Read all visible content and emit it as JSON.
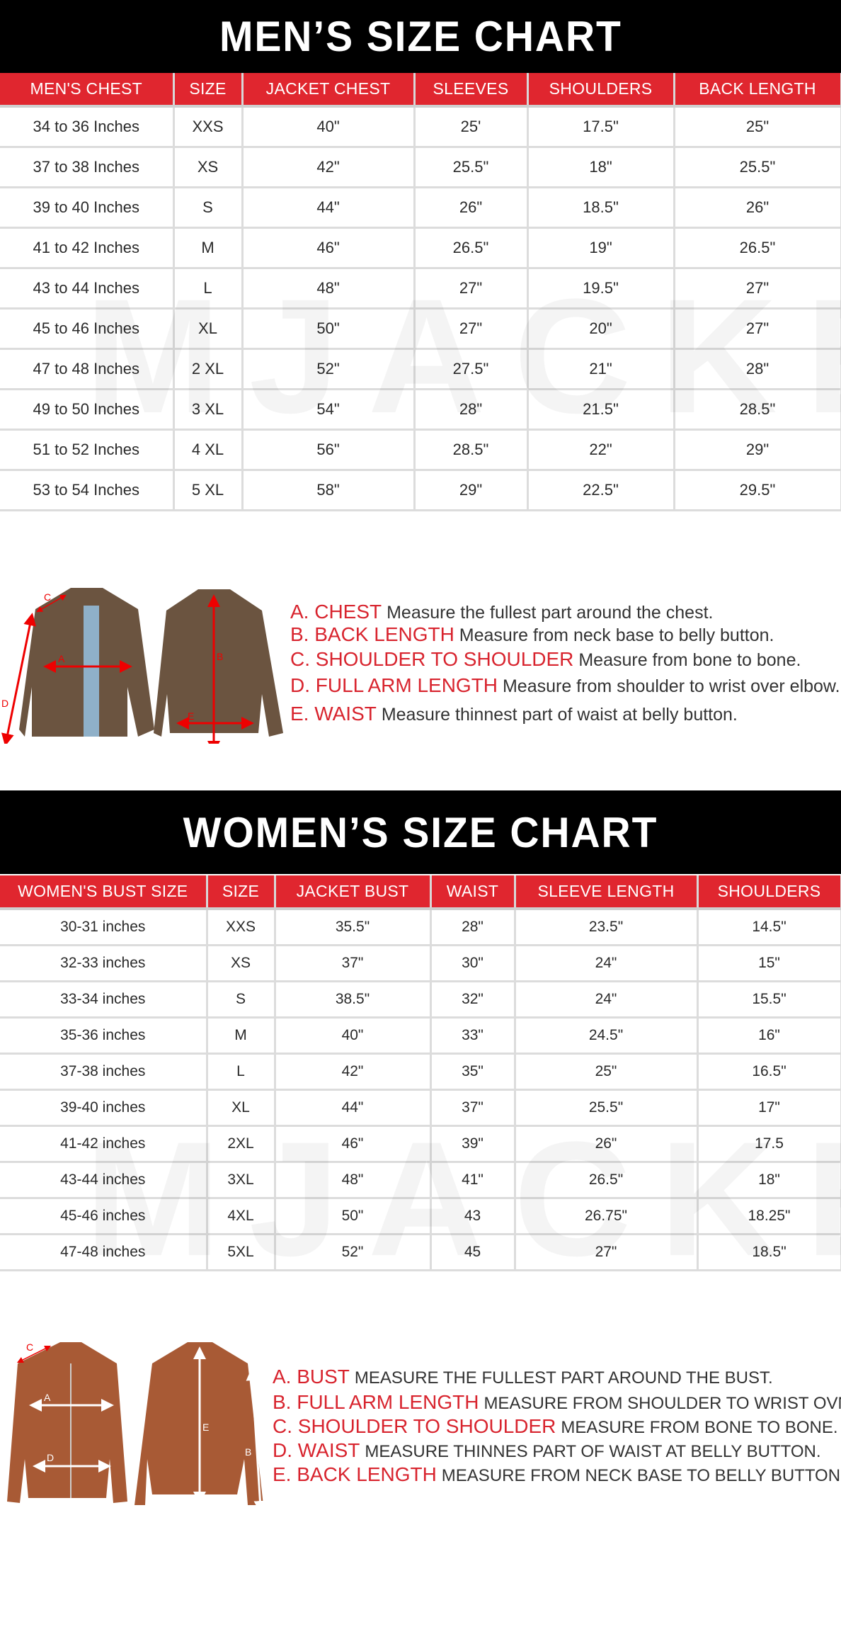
{
  "watermark": "MJACKET",
  "men": {
    "title": "MEN’S SIZE CHART",
    "headers": [
      "MEN'S CHEST",
      "SIZE",
      "JACKET CHEST",
      "SLEEVES",
      "SHOULDERS",
      "BACK LENGTH"
    ],
    "rows": [
      [
        "34 to 36 Inches",
        "XXS",
        "40\"",
        "25'",
        "17.5\"",
        "25\""
      ],
      [
        "37 to 38 Inches",
        "XS",
        "42\"",
        "25.5\"",
        "18\"",
        "25.5\""
      ],
      [
        "39 to 40 Inches",
        "S",
        "44\"",
        "26\"",
        "18.5\"",
        "26\""
      ],
      [
        "41 to 42 Inches",
        "M",
        "46\"",
        "26.5\"",
        "19\"",
        "26.5\""
      ],
      [
        "43 to 44 Inches",
        "L",
        "48\"",
        "27\"",
        "19.5\"",
        "27\""
      ],
      [
        "45 to 46 Inches",
        "XL",
        "50\"",
        "27\"",
        "20\"",
        "27\""
      ],
      [
        "47 to 48 Inches",
        "2 XL",
        "52\"",
        "27.5\"",
        "21\"",
        "28\""
      ],
      [
        "49 to 50 Inches",
        "3 XL",
        "54\"",
        "28\"",
        "21.5\"",
        "28.5\""
      ],
      [
        "51 to 52 Inches",
        "4 XL",
        "56\"",
        "28.5\"",
        "22\"",
        "29\""
      ],
      [
        "53 to 54 Inches",
        "5 XL",
        "58\"",
        "29\"",
        "22.5\"",
        "29.5\""
      ]
    ],
    "diagram_labels": {
      "a": "A",
      "b": "B",
      "c": "C",
      "d": "D",
      "e": "E"
    },
    "legend": [
      {
        "key": "A. CHEST",
        "desc": "Measure the fullest part around the chest."
      },
      {
        "key": "B. BACK LENGTH",
        "desc": "Measure from neck base to belly button."
      },
      {
        "key": "C. SHOULDER TO SHOULDER",
        "desc": "Measure from bone to bone."
      },
      {
        "key": "D. FULL ARM LENGTH",
        "desc": "Measure from shoulder to wrist over elbow."
      },
      {
        "key": "E. WAIST",
        "desc": "Measure thinnest part of waist at belly button."
      }
    ]
  },
  "women": {
    "title": "WOMEN’S SIZE CHART",
    "headers": [
      "WOMEN'S BUST SIZE",
      "SIZE",
      "JACKET BUST",
      "WAIST",
      "SLEEVE LENGTH",
      "SHOULDERS"
    ],
    "rows": [
      [
        "30-31 inches",
        "XXS",
        "35.5\"",
        "28\"",
        "23.5\"",
        "14.5\""
      ],
      [
        "32-33 inches",
        "XS",
        "37\"",
        "30\"",
        "24\"",
        "15\""
      ],
      [
        "33-34 inches",
        "S",
        "38.5\"",
        "32\"",
        "24\"",
        "15.5\""
      ],
      [
        "35-36 inches",
        "M",
        "40\"",
        "33\"",
        "24.5\"",
        "16\""
      ],
      [
        "37-38 inches",
        "L",
        "42\"",
        "35\"",
        "25\"",
        "16.5\""
      ],
      [
        "39-40 inches",
        "XL",
        "44\"",
        "37\"",
        "25.5\"",
        "17\""
      ],
      [
        "41-42 inches",
        "2XL",
        "46\"",
        "39\"",
        "26\"",
        "17.5"
      ],
      [
        "43-44 inches",
        "3XL",
        "48\"",
        "41\"",
        "26.5\"",
        "18\""
      ],
      [
        "45-46 inches",
        "4XL",
        "50\"",
        "43",
        "26.75\"",
        "18.25\""
      ],
      [
        "47-48 inches",
        "5XL",
        "52\"",
        "45",
        "27\"",
        "18.5\""
      ]
    ],
    "diagram_labels": {
      "a": "A",
      "b": "B",
      "c": "C",
      "d": "D",
      "e": "E"
    },
    "legend": [
      {
        "key": "A. BUST",
        "desc": "MEASURE THE FULLEST PART AROUND THE BUST."
      },
      {
        "key": "B. FULL ARM LENGTH",
        "desc": "MEASURE FROM SHOULDER TO WRIST OVN."
      },
      {
        "key": "C. SHOULDER TO SHOULDER",
        "desc": "MEASURE FROM BONE TO BONE."
      },
      {
        "key": "D. WAIST",
        "desc": "MEASURE THINNES PART OF WAIST AT BELLY BUTTON."
      },
      {
        "key": "E. BACK LENGTH",
        "desc": "MEASURE FROM NECK BASE TO BELLY BUTTON."
      }
    ]
  },
  "colors": {
    "header_red": "#e0262f",
    "banner_black": "#000000",
    "men_jacket": "#6b5440",
    "women_jacket": "#a85a35"
  }
}
